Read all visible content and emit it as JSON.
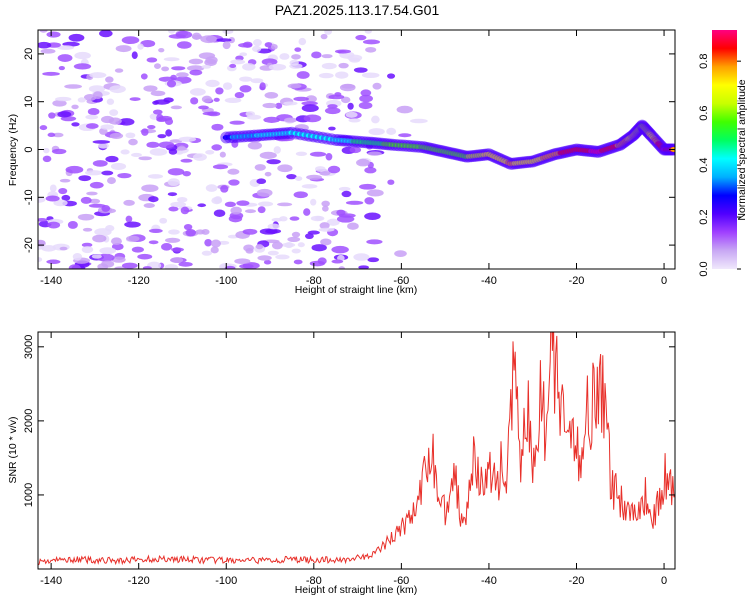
{
  "title": "PAZ1.2025.113.17.54.G01",
  "chart_data": [
    {
      "type": "heatmap",
      "xlabel": "Height of straight line (km)",
      "ylabel": "Frequency (Hz)",
      "xlim": [
        -143,
        2.5
      ],
      "ylim": [
        -25,
        25
      ],
      "xticks": [
        -140,
        -120,
        -100,
        -80,
        -60,
        -40,
        -20,
        0
      ],
      "yticks": [
        -20,
        -10,
        0,
        10,
        20
      ],
      "colorbar": {
        "label": "Normalized spectral amplitude",
        "range": [
          0,
          0.92
        ],
        "ticks": [
          0.0,
          0.2,
          0.4,
          0.6,
          0.8
        ],
        "colormap": [
          "#f0e8fc",
          "#c8a8f4",
          "#a040ff",
          "#5000ff",
          "#0000ff",
          "#00b0ff",
          "#00ffff",
          "#00ff60",
          "#40ff00",
          "#c8ff00",
          "#ffff00",
          "#ffa000",
          "#ff0000",
          "#ff0080"
        ]
      },
      "noise_region_x": [
        -143,
        -65
      ],
      "ridge": {
        "x": [
          -100,
          -92,
          -85,
          -75,
          -68,
          -62,
          -55,
          -50,
          -45,
          -40,
          -35,
          -30,
          -25,
          -20,
          -15,
          -10,
          -7,
          -5,
          -3,
          0,
          2.5
        ],
        "y": [
          2.5,
          3,
          3.5,
          2,
          1.5,
          1,
          0.5,
          -0.5,
          -1.5,
          -1,
          -3,
          -2.5,
          -1,
          0,
          -0.5,
          1,
          3,
          5,
          3,
          0,
          0
        ],
        "amplitude": [
          0.3,
          0.4,
          0.45,
          0.4,
          0.5,
          0.55,
          0.6,
          0.55,
          0.6,
          0.7,
          0.75,
          0.7,
          0.8,
          0.85,
          0.9,
          0.8,
          0.7,
          0.6,
          0.7,
          0.9,
          0.8
        ]
      }
    },
    {
      "type": "line",
      "xlabel": "Height of straight line (km)",
      "ylabel": "SNR (10 * v/v)",
      "xlim": [
        -143,
        2.5
      ],
      "ylim": [
        0,
        3200
      ],
      "xticks": [
        -140,
        -120,
        -100,
        -80,
        -60,
        -40,
        -20,
        0
      ],
      "yticks": [
        1000,
        2000,
        3000
      ],
      "series": [
        {
          "color": "#e8302a",
          "x": [
            -143,
            -135,
            -125,
            -115,
            -105,
            -95,
            -85,
            -75,
            -68,
            -64,
            -62,
            -60,
            -58,
            -56,
            -54,
            -53,
            -52,
            -50,
            -48,
            -46,
            -45,
            -44,
            -42,
            -40,
            -38,
            -37,
            -36,
            -35,
            -34,
            -33,
            -32,
            -31,
            -30,
            -29,
            -28,
            -27,
            -26,
            -25.5,
            -25,
            -24.5,
            -24,
            -23,
            -22,
            -21,
            -20,
            -19,
            -18,
            -17,
            -16,
            -15,
            -14,
            -13,
            -12,
            -11,
            -10,
            -9,
            -8,
            -7,
            -6,
            -5,
            -4,
            -3,
            -2,
            -1,
            0,
            1,
            2.5
          ],
          "y": [
            100,
            130,
            110,
            140,
            120,
            110,
            130,
            120,
            160,
            300,
            450,
            550,
            700,
            900,
            1400,
            1700,
            1100,
            800,
            1300,
            600,
            900,
            1550,
            1100,
            1300,
            1200,
            1450,
            1000,
            2300,
            2550,
            1400,
            1900,
            2050,
            1200,
            2000,
            2400,
            1700,
            2800,
            3150,
            2500,
            2900,
            2300,
            1900,
            1800,
            1600,
            1700,
            1500,
            2200,
            2100,
            2450,
            2500,
            2300,
            1850,
            1100,
            1050,
            950,
            850,
            800,
            750,
            850,
            900,
            1000,
            800,
            700,
            950,
            1250,
            1150,
            1000
          ]
        }
      ]
    }
  ]
}
